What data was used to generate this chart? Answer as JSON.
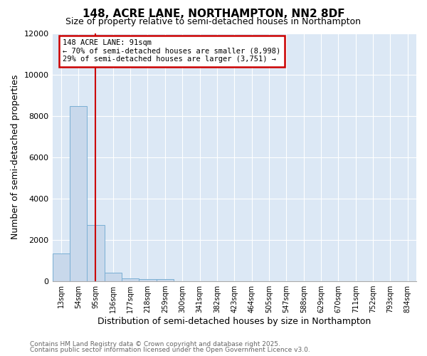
{
  "title1": "148, ACRE LANE, NORTHAMPTON, NN2 8DF",
  "title2": "Size of property relative to semi-detached houses in Northampton",
  "xlabel": "Distribution of semi-detached houses by size in Northampton",
  "ylabel": "Number of semi-detached properties",
  "categories": [
    "13sqm",
    "54sqm",
    "95sqm",
    "136sqm",
    "177sqm",
    "218sqm",
    "259sqm",
    "300sqm",
    "341sqm",
    "382sqm",
    "423sqm",
    "464sqm",
    "505sqm",
    "547sqm",
    "588sqm",
    "629sqm",
    "670sqm",
    "711sqm",
    "752sqm",
    "793sqm",
    "834sqm"
  ],
  "values": [
    1330,
    8450,
    2700,
    400,
    110,
    100,
    100,
    0,
    0,
    0,
    0,
    0,
    0,
    0,
    0,
    0,
    0,
    0,
    0,
    0,
    0
  ],
  "bar_color": "#c8d8eb",
  "bar_edge_color": "#7aafd4",
  "vline_x": 2.0,
  "vline_color": "#cc0000",
  "annotation_text": "148 ACRE LANE: 91sqm\n← 70% of semi-detached houses are smaller (8,998)\n29% of semi-detached houses are larger (3,751) →",
  "annotation_box_color": "#cc0000",
  "ylim": [
    0,
    12000
  ],
  "yticks": [
    0,
    2000,
    4000,
    6000,
    8000,
    10000,
    12000
  ],
  "bg_color": "#dce8f5",
  "footer1": "Contains HM Land Registry data © Crown copyright and database right 2025.",
  "footer2": "Contains public sector information licensed under the Open Government Licence v3.0."
}
